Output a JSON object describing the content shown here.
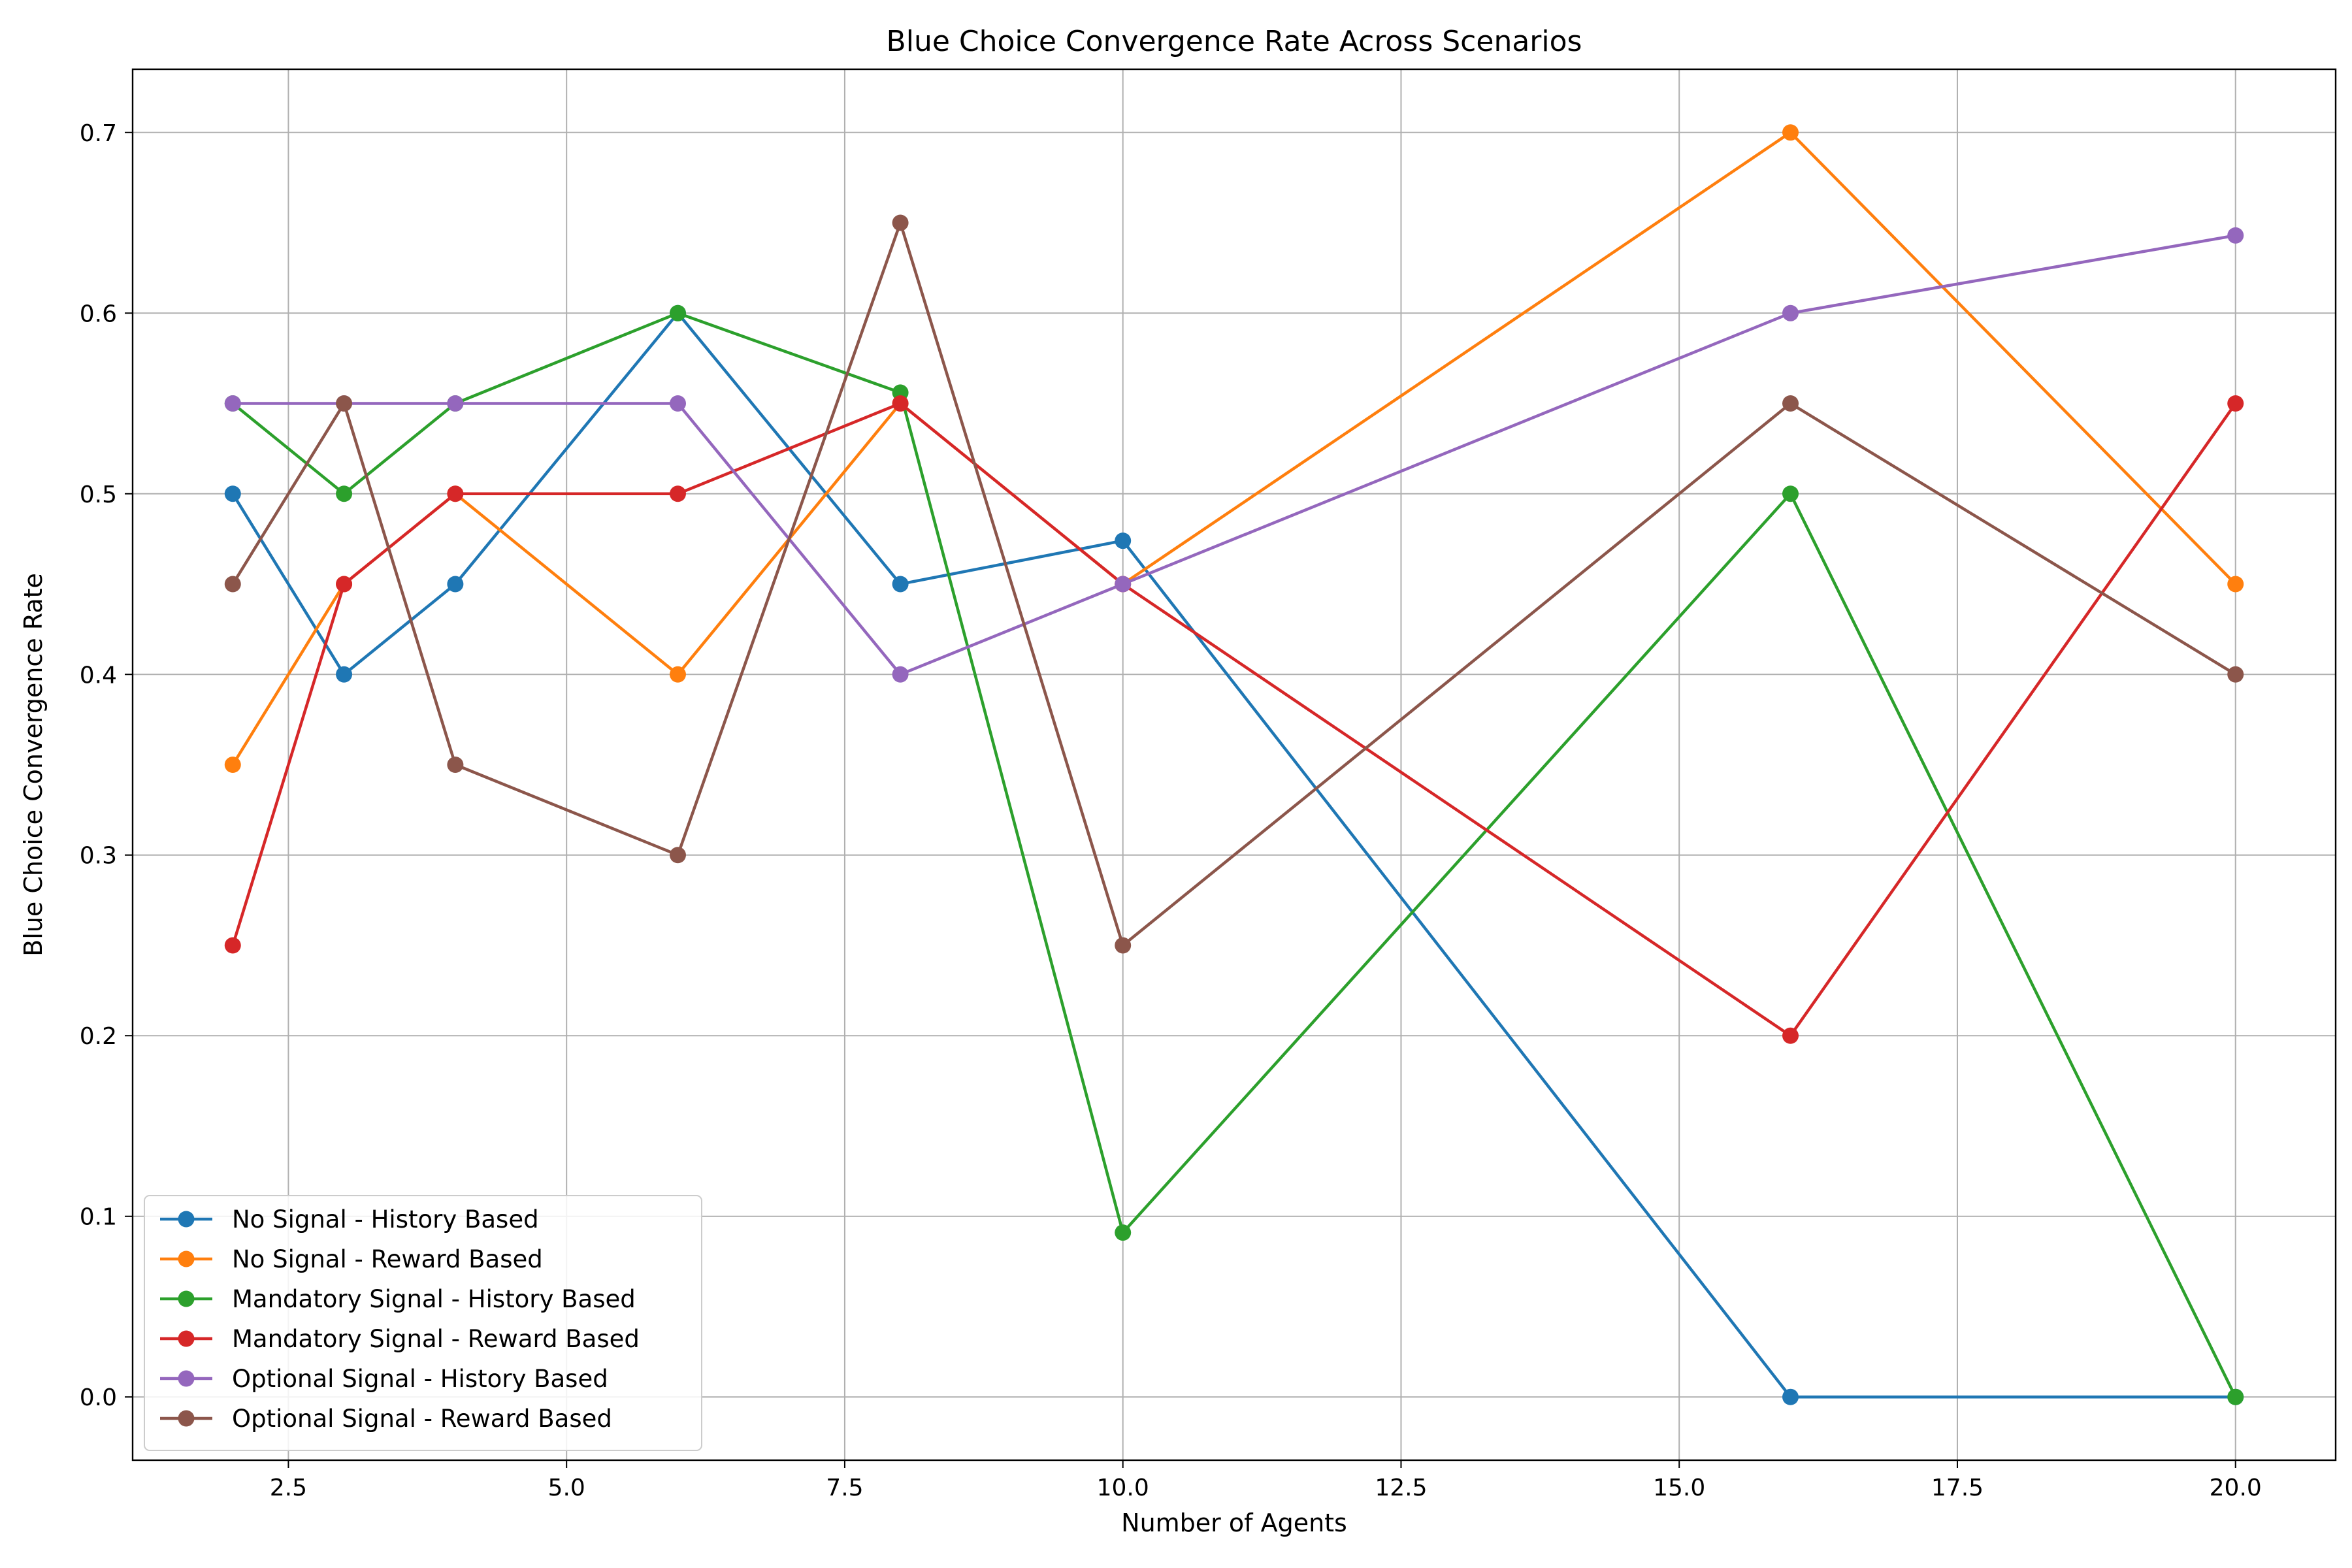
{
  "chart_data": {
    "type": "line",
    "title": "Blue Choice Convergence Rate Across Scenarios",
    "xlabel": "Number of Agents",
    "ylabel": "Blue Choice Convergence Rate",
    "x": [
      2,
      3,
      4,
      6,
      8,
      10,
      16,
      20
    ],
    "xlim": [
      1.1,
      20.9
    ],
    "ylim": [
      -0.035,
      0.735
    ],
    "xticks": [
      2.5,
      5.0,
      7.5,
      10.0,
      12.5,
      15.0,
      17.5,
      20.0
    ],
    "xtick_labels": [
      "2.5",
      "5.0",
      "7.5",
      "10.0",
      "12.5",
      "15.0",
      "17.5",
      "20.0"
    ],
    "yticks": [
      0.0,
      0.1,
      0.2,
      0.3,
      0.4,
      0.5,
      0.6,
      0.7
    ],
    "ytick_labels": [
      "0.0",
      "0.1",
      "0.2",
      "0.3",
      "0.4",
      "0.5",
      "0.6",
      "0.7"
    ],
    "grid": true,
    "legend_position": "lower-left",
    "series": [
      {
        "name": "No Signal - History Based",
        "color": "#1f77b4",
        "values": [
          0.5,
          0.4,
          0.45,
          0.6,
          0.45,
          0.474,
          0.0,
          0.0
        ]
      },
      {
        "name": "No Signal - Reward Based",
        "color": "#ff7f0e",
        "values": [
          0.35,
          0.45,
          0.5,
          0.4,
          0.55,
          0.45,
          0.7,
          0.45
        ]
      },
      {
        "name": "Mandatory Signal - History Based",
        "color": "#2ca02c",
        "values": [
          0.55,
          0.5,
          0.55,
          0.6,
          0.556,
          0.091,
          0.5,
          0.0
        ]
      },
      {
        "name": "Mandatory Signal - Reward Based",
        "color": "#d62728",
        "values": [
          0.25,
          0.45,
          0.5,
          0.5,
          0.55,
          0.45,
          0.2,
          0.55
        ]
      },
      {
        "name": "Optional Signal - History Based",
        "color": "#9467bd",
        "values": [
          0.55,
          0.55,
          0.55,
          0.55,
          0.4,
          0.45,
          0.6,
          0.643
        ]
      },
      {
        "name": "Optional Signal - Reward Based",
        "color": "#8c564b",
        "values": [
          0.45,
          0.55,
          0.35,
          0.3,
          0.65,
          0.25,
          0.55,
          0.4
        ]
      }
    ]
  }
}
